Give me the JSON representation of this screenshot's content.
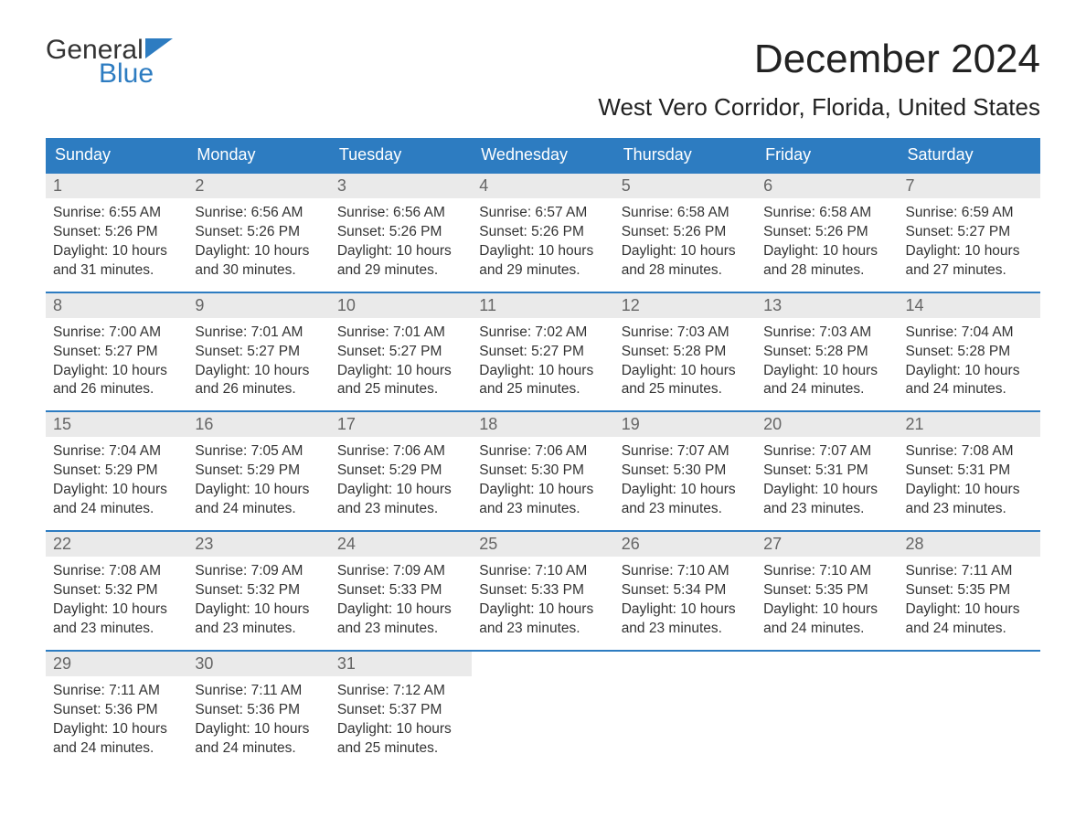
{
  "colors": {
    "brand_blue": "#2d7cc1",
    "header_bg": "#2d7cc1",
    "header_text": "#ffffff",
    "daynum_bg": "#eaeaea",
    "daynum_text": "#666666",
    "body_text": "#333333",
    "page_bg": "#ffffff",
    "week_border": "#2d7cc1"
  },
  "logo": {
    "line1": "General",
    "line2": "Blue"
  },
  "title": "December 2024",
  "location": "West Vero Corridor, Florida, United States",
  "weekdays": [
    "Sunday",
    "Monday",
    "Tuesday",
    "Wednesday",
    "Thursday",
    "Friday",
    "Saturday"
  ],
  "weeks": [
    [
      {
        "day": "1",
        "sunrise": "Sunrise: 6:55 AM",
        "sunset": "Sunset: 5:26 PM",
        "day1": "Daylight: 10 hours",
        "day2": "and 31 minutes."
      },
      {
        "day": "2",
        "sunrise": "Sunrise: 6:56 AM",
        "sunset": "Sunset: 5:26 PM",
        "day1": "Daylight: 10 hours",
        "day2": "and 30 minutes."
      },
      {
        "day": "3",
        "sunrise": "Sunrise: 6:56 AM",
        "sunset": "Sunset: 5:26 PM",
        "day1": "Daylight: 10 hours",
        "day2": "and 29 minutes."
      },
      {
        "day": "4",
        "sunrise": "Sunrise: 6:57 AM",
        "sunset": "Sunset: 5:26 PM",
        "day1": "Daylight: 10 hours",
        "day2": "and 29 minutes."
      },
      {
        "day": "5",
        "sunrise": "Sunrise: 6:58 AM",
        "sunset": "Sunset: 5:26 PM",
        "day1": "Daylight: 10 hours",
        "day2": "and 28 minutes."
      },
      {
        "day": "6",
        "sunrise": "Sunrise: 6:58 AM",
        "sunset": "Sunset: 5:26 PM",
        "day1": "Daylight: 10 hours",
        "day2": "and 28 minutes."
      },
      {
        "day": "7",
        "sunrise": "Sunrise: 6:59 AM",
        "sunset": "Sunset: 5:27 PM",
        "day1": "Daylight: 10 hours",
        "day2": "and 27 minutes."
      }
    ],
    [
      {
        "day": "8",
        "sunrise": "Sunrise: 7:00 AM",
        "sunset": "Sunset: 5:27 PM",
        "day1": "Daylight: 10 hours",
        "day2": "and 26 minutes."
      },
      {
        "day": "9",
        "sunrise": "Sunrise: 7:01 AM",
        "sunset": "Sunset: 5:27 PM",
        "day1": "Daylight: 10 hours",
        "day2": "and 26 minutes."
      },
      {
        "day": "10",
        "sunrise": "Sunrise: 7:01 AM",
        "sunset": "Sunset: 5:27 PM",
        "day1": "Daylight: 10 hours",
        "day2": "and 25 minutes."
      },
      {
        "day": "11",
        "sunrise": "Sunrise: 7:02 AM",
        "sunset": "Sunset: 5:27 PM",
        "day1": "Daylight: 10 hours",
        "day2": "and 25 minutes."
      },
      {
        "day": "12",
        "sunrise": "Sunrise: 7:03 AM",
        "sunset": "Sunset: 5:28 PM",
        "day1": "Daylight: 10 hours",
        "day2": "and 25 minutes."
      },
      {
        "day": "13",
        "sunrise": "Sunrise: 7:03 AM",
        "sunset": "Sunset: 5:28 PM",
        "day1": "Daylight: 10 hours",
        "day2": "and 24 minutes."
      },
      {
        "day": "14",
        "sunrise": "Sunrise: 7:04 AM",
        "sunset": "Sunset: 5:28 PM",
        "day1": "Daylight: 10 hours",
        "day2": "and 24 minutes."
      }
    ],
    [
      {
        "day": "15",
        "sunrise": "Sunrise: 7:04 AM",
        "sunset": "Sunset: 5:29 PM",
        "day1": "Daylight: 10 hours",
        "day2": "and 24 minutes."
      },
      {
        "day": "16",
        "sunrise": "Sunrise: 7:05 AM",
        "sunset": "Sunset: 5:29 PM",
        "day1": "Daylight: 10 hours",
        "day2": "and 24 minutes."
      },
      {
        "day": "17",
        "sunrise": "Sunrise: 7:06 AM",
        "sunset": "Sunset: 5:29 PM",
        "day1": "Daylight: 10 hours",
        "day2": "and 23 minutes."
      },
      {
        "day": "18",
        "sunrise": "Sunrise: 7:06 AM",
        "sunset": "Sunset: 5:30 PM",
        "day1": "Daylight: 10 hours",
        "day2": "and 23 minutes."
      },
      {
        "day": "19",
        "sunrise": "Sunrise: 7:07 AM",
        "sunset": "Sunset: 5:30 PM",
        "day1": "Daylight: 10 hours",
        "day2": "and 23 minutes."
      },
      {
        "day": "20",
        "sunrise": "Sunrise: 7:07 AM",
        "sunset": "Sunset: 5:31 PM",
        "day1": "Daylight: 10 hours",
        "day2": "and 23 minutes."
      },
      {
        "day": "21",
        "sunrise": "Sunrise: 7:08 AM",
        "sunset": "Sunset: 5:31 PM",
        "day1": "Daylight: 10 hours",
        "day2": "and 23 minutes."
      }
    ],
    [
      {
        "day": "22",
        "sunrise": "Sunrise: 7:08 AM",
        "sunset": "Sunset: 5:32 PM",
        "day1": "Daylight: 10 hours",
        "day2": "and 23 minutes."
      },
      {
        "day": "23",
        "sunrise": "Sunrise: 7:09 AM",
        "sunset": "Sunset: 5:32 PM",
        "day1": "Daylight: 10 hours",
        "day2": "and 23 minutes."
      },
      {
        "day": "24",
        "sunrise": "Sunrise: 7:09 AM",
        "sunset": "Sunset: 5:33 PM",
        "day1": "Daylight: 10 hours",
        "day2": "and 23 minutes."
      },
      {
        "day": "25",
        "sunrise": "Sunrise: 7:10 AM",
        "sunset": "Sunset: 5:33 PM",
        "day1": "Daylight: 10 hours",
        "day2": "and 23 minutes."
      },
      {
        "day": "26",
        "sunrise": "Sunrise: 7:10 AM",
        "sunset": "Sunset: 5:34 PM",
        "day1": "Daylight: 10 hours",
        "day2": "and 23 minutes."
      },
      {
        "day": "27",
        "sunrise": "Sunrise: 7:10 AM",
        "sunset": "Sunset: 5:35 PM",
        "day1": "Daylight: 10 hours",
        "day2": "and 24 minutes."
      },
      {
        "day": "28",
        "sunrise": "Sunrise: 7:11 AM",
        "sunset": "Sunset: 5:35 PM",
        "day1": "Daylight: 10 hours",
        "day2": "and 24 minutes."
      }
    ],
    [
      {
        "day": "29",
        "sunrise": "Sunrise: 7:11 AM",
        "sunset": "Sunset: 5:36 PM",
        "day1": "Daylight: 10 hours",
        "day2": "and 24 minutes."
      },
      {
        "day": "30",
        "sunrise": "Sunrise: 7:11 AM",
        "sunset": "Sunset: 5:36 PM",
        "day1": "Daylight: 10 hours",
        "day2": "and 24 minutes."
      },
      {
        "day": "31",
        "sunrise": "Sunrise: 7:12 AM",
        "sunset": "Sunset: 5:37 PM",
        "day1": "Daylight: 10 hours",
        "day2": "and 25 minutes."
      },
      null,
      null,
      null,
      null
    ]
  ]
}
